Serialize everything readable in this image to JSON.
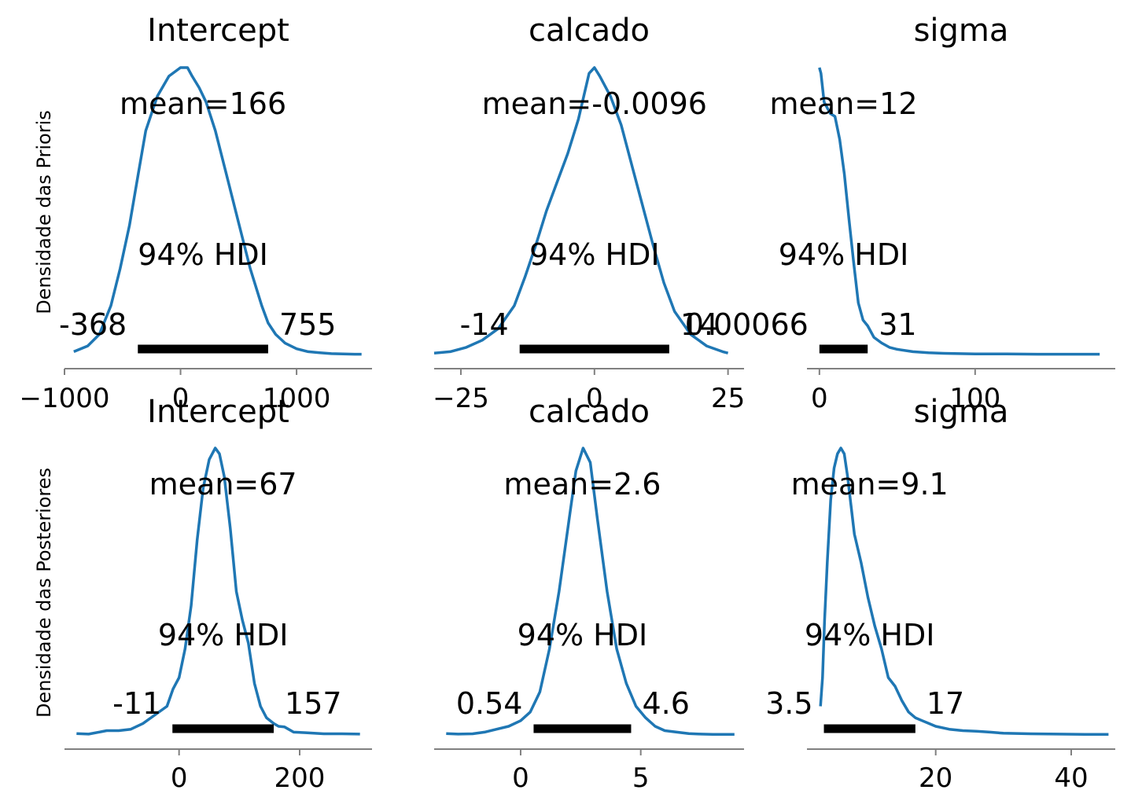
{
  "row_labels": [
    "Densidade das Prioris",
    "Densidade das Posteriores"
  ],
  "colors": {
    "curve": "#1f77b4",
    "hdi_bar": "#000000",
    "axis": "#808080"
  },
  "chart_data": [
    {
      "type": "line",
      "title": "Intercept",
      "row": 0,
      "col": 0,
      "mean_label": "mean=166",
      "hdi_label": "94% HDI",
      "hdi_low": -368,
      "hdi_high": 755,
      "hdi_low_label": "-368",
      "hdi_high_label": "755",
      "xlim": [
        -1000,
        1650
      ],
      "xticks": [
        -1000,
        0,
        1000
      ],
      "xtick_labels": [
        "−1000",
        "0",
        "1000"
      ],
      "series": [
        {
          "x": [
            -920,
            -800,
            -700,
            -600,
            -520,
            -440,
            -368,
            -300,
            -200,
            -100,
            0,
            60,
            100,
            160,
            220,
            300,
            400,
            500,
            600,
            700,
            755,
            820,
            900,
            1000,
            1100,
            1200,
            1300,
            1400,
            1500,
            1560
          ],
          "y": [
            0.01,
            0.03,
            0.07,
            0.17,
            0.3,
            0.45,
            0.62,
            0.78,
            0.9,
            0.97,
            1.0,
            1.0,
            0.97,
            0.93,
            0.88,
            0.78,
            0.62,
            0.46,
            0.3,
            0.17,
            0.11,
            0.07,
            0.04,
            0.02,
            0.01,
            0.006,
            0.003,
            0.002,
            0.001,
            0.001
          ]
        }
      ]
    },
    {
      "type": "line",
      "title": "calcado",
      "row": 0,
      "col": 1,
      "mean_label": "mean=-0.0096",
      "hdi_label": "94% HDI",
      "hdi_low": -14,
      "hdi_high": 14,
      "hdi_low_label": "-14",
      "hdi_high_label": "14",
      "xlim": [
        -30,
        28
      ],
      "xticks": [
        -25,
        0,
        25
      ],
      "xtick_labels": [
        "−25",
        "0",
        "25"
      ],
      "series": [
        {
          "x": [
            -30,
            -27,
            -24,
            -21,
            -18,
            -15,
            -13,
            -11,
            -9,
            -7,
            -5,
            -3,
            -1,
            0,
            1,
            3,
            5,
            7,
            9,
            11,
            13,
            15,
            18,
            21,
            24,
            25
          ],
          "y": [
            0.005,
            0.01,
            0.025,
            0.05,
            0.09,
            0.17,
            0.27,
            0.38,
            0.5,
            0.6,
            0.7,
            0.82,
            0.98,
            1.0,
            0.97,
            0.9,
            0.8,
            0.66,
            0.52,
            0.38,
            0.25,
            0.15,
            0.07,
            0.03,
            0.01,
            0.005
          ]
        }
      ]
    },
    {
      "type": "line",
      "title": "sigma",
      "row": 0,
      "col": 2,
      "mean_label": "mean=12",
      "hdi_label": "94% HDI",
      "hdi_low": 0.00066,
      "hdi_high": 31,
      "hdi_low_label": "0.00066",
      "hdi_high_label": "31",
      "xlim": [
        -8,
        190
      ],
      "xticks": [
        0,
        100
      ],
      "xtick_labels": [
        "0",
        "100"
      ],
      "series": [
        {
          "x": [
            0,
            1,
            2,
            3,
            5,
            7,
            10,
            13,
            16,
            19,
            22,
            25,
            28,
            31,
            35,
            40,
            45,
            50,
            60,
            70,
            80,
            100,
            120,
            140,
            160,
            180
          ],
          "y": [
            1.0,
            0.98,
            0.93,
            0.88,
            0.86,
            0.84,
            0.83,
            0.75,
            0.63,
            0.47,
            0.32,
            0.18,
            0.12,
            0.1,
            0.06,
            0.04,
            0.025,
            0.018,
            0.01,
            0.006,
            0.004,
            0.002,
            0.002,
            0.001,
            0.001,
            0.001
          ]
        }
      ]
    },
    {
      "type": "line",
      "title": "Intercept",
      "row": 1,
      "col": 0,
      "mean_label": "mean=67",
      "hdi_label": "94% HDI",
      "hdi_low": -11,
      "hdi_high": 157,
      "hdi_low_label": "-11",
      "hdi_high_label": "157",
      "xlim": [
        -190,
        320
      ],
      "xticks": [
        0,
        200
      ],
      "xtick_labels": [
        "0",
        "200"
      ],
      "series": [
        {
          "x": [
            -170,
            -150,
            -120,
            -100,
            -80,
            -60,
            -40,
            -20,
            -10,
            0,
            10,
            20,
            30,
            40,
            50,
            60,
            67,
            75,
            85,
            95,
            105,
            115,
            125,
            135,
            145,
            157,
            165,
            175,
            190,
            210,
            240,
            270,
            300
          ],
          "y": [
            0.005,
            0.003,
            0.015,
            0.015,
            0.02,
            0.04,
            0.07,
            0.1,
            0.16,
            0.2,
            0.3,
            0.45,
            0.68,
            0.86,
            0.96,
            1.0,
            0.98,
            0.9,
            0.72,
            0.5,
            0.4,
            0.32,
            0.18,
            0.1,
            0.06,
            0.04,
            0.03,
            0.028,
            0.01,
            0.008,
            0.004,
            0.004,
            0.003
          ]
        }
      ]
    },
    {
      "type": "line",
      "title": "calcado",
      "row": 1,
      "col": 1,
      "mean_label": "mean=2.6",
      "hdi_label": "94% HDI",
      "hdi_low": 0.54,
      "hdi_high": 4.6,
      "hdi_low_label": "0.54",
      "hdi_high_label": "4.6",
      "xlim": [
        -3.6,
        9.3
      ],
      "xticks": [
        0,
        5
      ],
      "xtick_labels": [
        "0",
        "5"
      ],
      "series": [
        {
          "x": [
            -3.1,
            -2.6,
            -2,
            -1.5,
            -1,
            -0.5,
            0,
            0.4,
            0.8,
            1.2,
            1.6,
            2.0,
            2.3,
            2.6,
            2.9,
            3.2,
            3.6,
            4.0,
            4.4,
            4.8,
            5.2,
            5.6,
            6.0,
            6.5,
            7.0,
            7.5,
            8.0,
            8.5,
            8.9
          ],
          "y": [
            0.005,
            0.003,
            0.004,
            0.01,
            0.02,
            0.03,
            0.05,
            0.08,
            0.15,
            0.3,
            0.5,
            0.74,
            0.92,
            1.0,
            0.95,
            0.75,
            0.5,
            0.3,
            0.18,
            0.1,
            0.06,
            0.03,
            0.015,
            0.01,
            0.005,
            0.003,
            0.002,
            0.002,
            0.002
          ]
        }
      ]
    },
    {
      "type": "line",
      "title": "sigma",
      "row": 1,
      "col": 2,
      "mean_label": "mean=9.1",
      "hdi_label": "94% HDI",
      "hdi_low": 3.5,
      "hdi_high": 17,
      "hdi_low_label": "3.5",
      "hdi_high_label": "17",
      "xlim": [
        1.0,
        46.5
      ],
      "xticks": [
        20,
        40
      ],
      "xtick_labels": [
        "20",
        "40"
      ],
      "series": [
        {
          "x": [
            3.0,
            3.3,
            3.6,
            4,
            4.5,
            5,
            5.5,
            6,
            6.5,
            7,
            7.5,
            8,
            9,
            10,
            11,
            12,
            13,
            14,
            15,
            16,
            17,
            18,
            19,
            20,
            22,
            24,
            26,
            28,
            30,
            34,
            38,
            42,
            45.5
          ],
          "y": [
            0.1,
            0.2,
            0.4,
            0.6,
            0.82,
            0.93,
            0.98,
            1.0,
            0.98,
            0.9,
            0.8,
            0.7,
            0.6,
            0.48,
            0.38,
            0.3,
            0.2,
            0.17,
            0.12,
            0.08,
            0.06,
            0.05,
            0.04,
            0.03,
            0.02,
            0.015,
            0.013,
            0.01,
            0.006,
            0.004,
            0.003,
            0.002,
            0.002
          ]
        }
      ]
    }
  ]
}
